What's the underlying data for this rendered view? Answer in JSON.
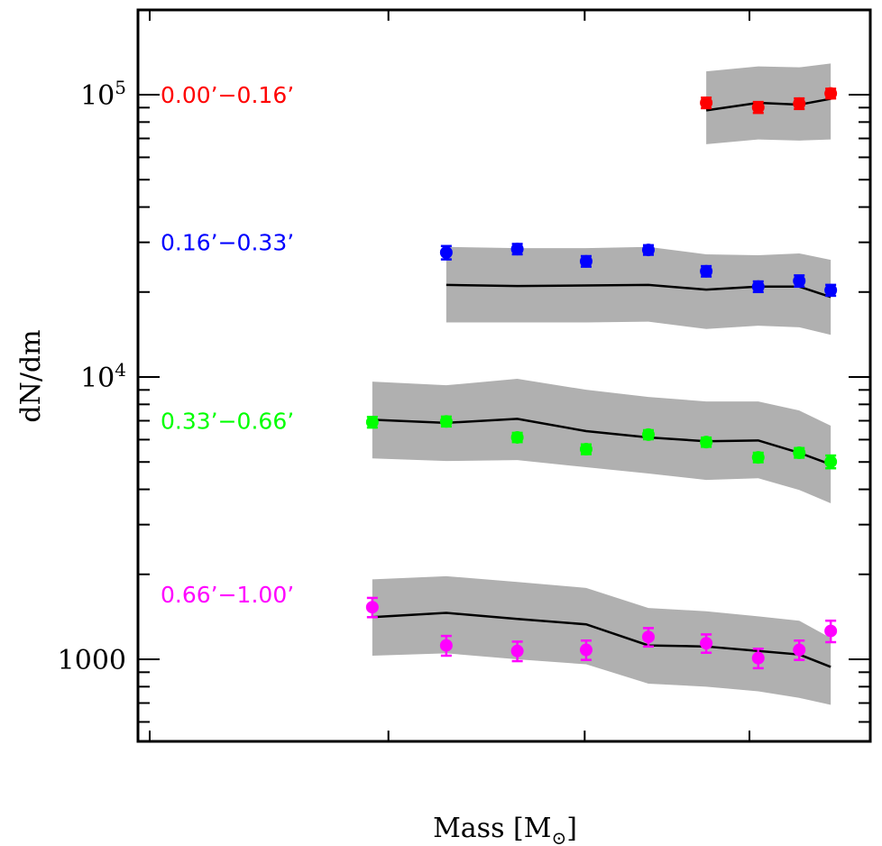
{
  "chart_data": {
    "type": "scatter",
    "title": "",
    "xlabel": "Mass [M",
    "xlabel_subscript": "⊙",
    "xlabel_suffix": "]",
    "ylabel": "dN/dm",
    "yscale": "log",
    "ylim": [
      580,
      220000
    ],
    "xlim": [
      0,
      1
    ],
    "x_note": "x-axis tick labels not shown; x values are fractional positions along the axis",
    "x_ticks": [
      0.016,
      0.342,
      0.61,
      0.835
    ],
    "y_major_ticks": [
      {
        "value": 1000,
        "label": "1000",
        "base": "",
        "exp": ""
      },
      {
        "value": 10000,
        "label": "",
        "base": "10",
        "exp": "4"
      },
      {
        "value": 100000,
        "label": "",
        "base": "10",
        "exp": "5"
      }
    ],
    "y_minor_ticks": [
      600,
      700,
      800,
      900,
      2000,
      3000,
      4000,
      5000,
      6000,
      7000,
      8000,
      9000,
      20000,
      30000,
      40000,
      50000,
      60000,
      70000,
      80000,
      90000,
      200000
    ],
    "grid": false,
    "band_color": "#b0b0b0",
    "model_line_color": "#000000",
    "series": [
      {
        "name": "0.00'–0.16'",
        "label": "0.00’−0.16’",
        "color": "#ff0000",
        "label_at_value": 100000,
        "x": [
          0.776,
          0.847,
          0.903,
          0.946
        ],
        "y": [
          93600,
          90200,
          93000,
          101000
        ],
        "yerr": [
          4000,
          4000,
          4000,
          4000
        ],
        "model": [
          88000,
          93600,
          92200,
          96700
        ],
        "band_upper": [
          121000,
          126000,
          125000,
          129000
        ],
        "band_lower": [
          66800,
          69400,
          68800,
          69400
        ]
      },
      {
        "name": "0.16'–0.33'",
        "label": "0.16’−0.33’",
        "color": "#0000ff",
        "label_at_value": 30000,
        "x": [
          0.421,
          0.518,
          0.612,
          0.697,
          0.776,
          0.847,
          0.903,
          0.946
        ],
        "y": [
          27600,
          28400,
          25700,
          28200,
          23700,
          20900,
          21900,
          20300
        ],
        "yerr": [
          1500,
          1200,
          1100,
          1100,
          1000,
          900,
          1000,
          900
        ],
        "model": [
          21200,
          21000,
          21100,
          21200,
          20400,
          20900,
          20900,
          19200
        ],
        "band_upper": [
          28900,
          28600,
          28600,
          28900,
          27200,
          27000,
          27400,
          26000
        ],
        "band_lower": [
          15600,
          15600,
          15600,
          15700,
          14800,
          15200,
          15000,
          14100
        ]
      },
      {
        "name": "0.33'–0.66'",
        "label": "0.33’−0.66’",
        "color": "#00ff00",
        "label_at_value": 7000,
        "x": [
          0.32,
          0.421,
          0.518,
          0.612,
          0.697,
          0.776,
          0.847,
          0.903,
          0.946
        ],
        "y": [
          6920,
          6960,
          6110,
          5550,
          6250,
          5880,
          5190,
          5390,
          5010
        ],
        "yerr": [
          300,
          280,
          230,
          220,
          230,
          220,
          200,
          210,
          260
        ],
        "model": [
          7060,
          6880,
          7110,
          6430,
          6110,
          5920,
          5960,
          5390,
          4900
        ],
        "band_upper": [
          9630,
          9350,
          9850,
          9010,
          8500,
          8190,
          8190,
          7610,
          6720
        ],
        "band_lower": [
          5150,
          5040,
          5080,
          4790,
          4550,
          4320,
          4380,
          3980,
          3570
        ]
      },
      {
        "name": "0.66'–1.00'",
        "label": "0.66’−1.00’",
        "color": "#ff00ff",
        "label_at_value": 1700,
        "x": [
          0.32,
          0.421,
          0.518,
          0.612,
          0.697,
          0.776,
          0.847,
          0.903,
          0.946
        ],
        "y": [
          1530,
          1120,
          1070,
          1080,
          1200,
          1140,
          1010,
          1080,
          1260
        ],
        "yerr": [
          120,
          90,
          85,
          85,
          90,
          85,
          80,
          85,
          110
        ],
        "model": [
          1410,
          1460,
          1390,
          1330,
          1120,
          1110,
          1070,
          1040,
          940
        ],
        "band_upper": [
          1920,
          1970,
          1880,
          1790,
          1520,
          1480,
          1420,
          1370,
          1190
        ],
        "band_lower": [
          1030,
          1050,
          1000,
          960,
          820,
          800,
          770,
          730,
          690
        ]
      }
    ]
  }
}
